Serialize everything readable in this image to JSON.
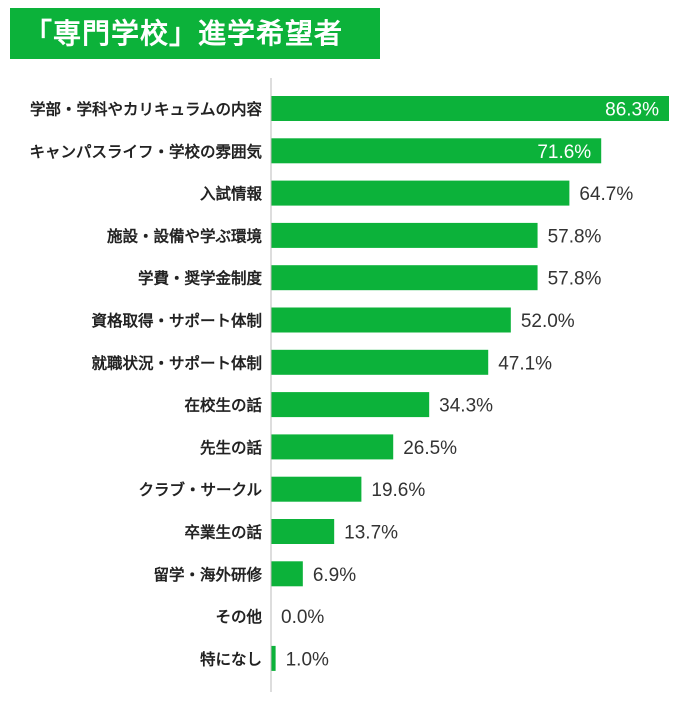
{
  "title": "「専門学校」進学希望者",
  "colors": {
    "bar": "#0cb23a",
    "title_bg": "#0cb23a",
    "axis": "#bbbbbb",
    "label_text": "#222222",
    "value_text": "#333333",
    "inside_value_text": "#ffffff"
  },
  "chart_data": {
    "type": "bar",
    "orientation": "horizontal",
    "title": "「専門学校」進学希望者",
    "unit": "%",
    "categories": [
      "学部・学科やカリキュラムの内容",
      "キャンパスライフ・学校の雰囲気",
      "入試情報",
      "施設・設備や学ぶ環境",
      "学費・奨学金制度",
      "資格取得・サポート体制",
      "就職状況・サポート体制",
      "在校生の話",
      "先生の話",
      "クラブ・サークル",
      "卒業生の話",
      "留学・海外研修",
      "その他",
      "特になし"
    ],
    "values": [
      86.3,
      71.6,
      64.7,
      57.8,
      57.8,
      52.0,
      47.1,
      34.3,
      26.5,
      19.6,
      13.7,
      6.9,
      0.0,
      1.0
    ],
    "value_labels": [
      "86.3%",
      "71.6%",
      "64.7%",
      "57.8%",
      "57.8%",
      "52.0%",
      "47.1%",
      "34.3%",
      "26.5%",
      "19.6%",
      "13.7%",
      "6.9%",
      "0.0%",
      "1.0%"
    ],
    "xlim": [
      0,
      86.3
    ],
    "grid": false,
    "legend": "none"
  }
}
